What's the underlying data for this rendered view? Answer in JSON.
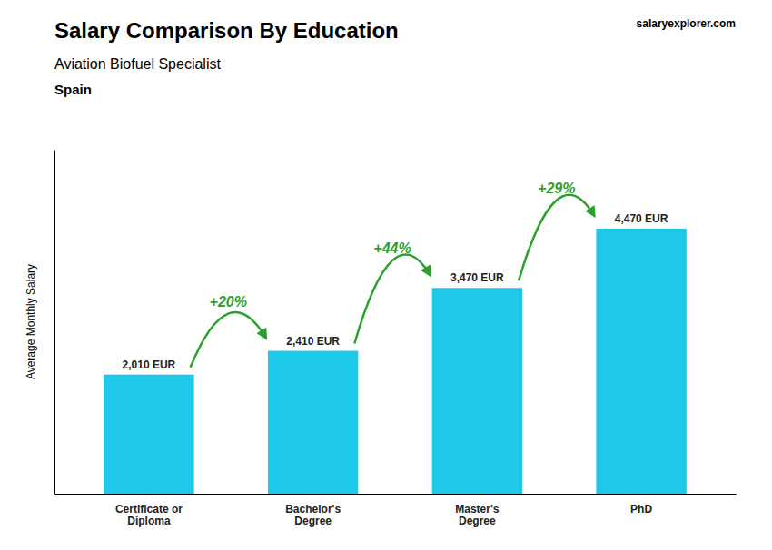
{
  "chart_data": {
    "type": "bar",
    "title": "Salary Comparison By Education",
    "subtitle": "Aviation Biofuel Specialist",
    "ylabel": "Average Monthly Salary",
    "annotations": [
      "Spain",
      "salaryexplorer.com"
    ],
    "categories": [
      "Certificate or\nDiploma",
      "Bachelor's\nDegree",
      "Master's\nDegree",
      "PhD"
    ],
    "values": [
      2010,
      2410,
      3470,
      4470
    ],
    "value_labels": [
      "2,010 EUR",
      "2,410 EUR",
      "3,470 EUR",
      "4,470 EUR"
    ],
    "data_labels": true,
    "change_labels": [
      "+20%",
      "+44%",
      "+29%"
    ],
    "color": "#1ec8e8",
    "ylim": [
      0,
      5800
    ],
    "tick_labels": "x",
    "grid": false
  }
}
